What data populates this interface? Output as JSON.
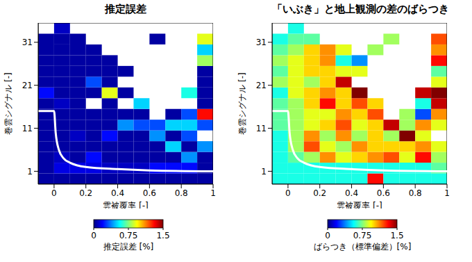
{
  "chart_data": [
    {
      "type": "heatmap",
      "title": "推定誤差",
      "x_label": "雲被覆率 [-]",
      "y_label": "巻雲シグナル [-]",
      "xlim": [
        -0.1,
        1
      ],
      "xticks": [
        0,
        0.2,
        0.4,
        0.6,
        0.8,
        1
      ],
      "ylim": [
        -2,
        35.5
      ],
      "yticks": [
        1,
        11,
        21,
        31
      ],
      "x_bins": [
        -0.1,
        0,
        0.1,
        0.2,
        0.3,
        0.4,
        0.5,
        0.6,
        0.7,
        0.8,
        0.9,
        1
      ],
      "y_bins": [
        -2,
        0.5,
        3,
        5.5,
        8,
        10.5,
        13,
        15.5,
        18,
        20.5,
        23,
        25.5,
        28,
        30.5,
        33,
        35.5
      ],
      "cells": [
        [
          0.05,
          0.05,
          0.05,
          0.05,
          0.05,
          0.05,
          0.05,
          0.05,
          0.05,
          0.05,
          0.05
        ],
        [
          0.05,
          0.15,
          0.15,
          0.15,
          0.1,
          0.1,
          0.1,
          0.2,
          0.2,
          0.2,
          0.05
        ],
        [
          0.05,
          0.1,
          0.05,
          0.2,
          0.05,
          0.05,
          0.05,
          0.05,
          0.05,
          0.4,
          0.05
        ],
        [
          0.05,
          0.05,
          0.05,
          0.05,
          0.05,
          0.05,
          0.05,
          0.05,
          0.5,
          0.05,
          0.4
        ],
        [
          0.05,
          0.05,
          0.1,
          0.05,
          0.2,
          0.05,
          0.05,
          0.4,
          0.05,
          0.3,
          null
        ],
        [
          0.05,
          0.05,
          0.05,
          0.05,
          0.05,
          0.4,
          0.3,
          0.3,
          0.5,
          0.5,
          0.3
        ],
        [
          0.05,
          0.05,
          0.05,
          0.05,
          0.05,
          0.05,
          0.05,
          null,
          0.05,
          0.3,
          1.3
        ],
        [
          0.05,
          0.1,
          0.05,
          null,
          0.05,
          null,
          0.5,
          null,
          null,
          null,
          0.05
        ],
        [
          0.2,
          0.05,
          0.05,
          0.05,
          0.9,
          0.05,
          null,
          null,
          null,
          0.6,
          0.05
        ],
        [
          0.05,
          0.05,
          0.05,
          0.3,
          0.05,
          null,
          null,
          null,
          null,
          null,
          0.05
        ],
        [
          0.05,
          0.05,
          0.05,
          0.05,
          0.05,
          0.05,
          null,
          null,
          null,
          null,
          0.05
        ],
        [
          0.05,
          0.05,
          0.05,
          0.05,
          0.05,
          null,
          null,
          null,
          null,
          null,
          0.8
        ],
        [
          0.05,
          0.05,
          0.05,
          0.05,
          null,
          null,
          null,
          null,
          null,
          null,
          0.5
        ],
        [
          0.05,
          0.05,
          0.05,
          null,
          null,
          null,
          null,
          0.05,
          null,
          null,
          0.9
        ],
        [
          null,
          0.1,
          null,
          null,
          null,
          null,
          null,
          null,
          null,
          null,
          null
        ]
      ],
      "colorbar": {
        "lim": [
          0,
          1.5
        ],
        "ticks": [
          0,
          0.75,
          1.5
        ],
        "label": "推定誤差 [%]"
      },
      "boundary": {
        "color": "#ffffff",
        "line_style": "solid",
        "x": [
          -0.1,
          0,
          0.01,
          0.03,
          0.06,
          0.1,
          0.2,
          0.4,
          0.6,
          1
        ],
        "y": [
          15,
          15,
          10,
          6,
          4,
          3,
          2,
          1.5,
          1.2,
          1
        ]
      }
    },
    {
      "type": "heatmap",
      "title": "「いぶき」と地上観測の差のばらつき",
      "x_label": "雲被覆率 [-]",
      "y_label": "巻雲シグナル [-]",
      "xlim": [
        -0.1,
        1
      ],
      "xticks": [
        0,
        0.2,
        0.4,
        0.6,
        0.8,
        1
      ],
      "ylim": [
        -2,
        35.5
      ],
      "yticks": [
        1,
        11,
        21,
        31
      ],
      "x_bins": [
        -0.1,
        0,
        0.1,
        0.2,
        0.3,
        0.4,
        0.5,
        0.6,
        0.7,
        0.8,
        0.9,
        1
      ],
      "y_bins": [
        -2,
        0.5,
        3,
        5.5,
        8,
        10.5,
        13,
        15.5,
        18,
        20.5,
        23,
        25.5,
        28,
        30.5,
        33,
        35.5
      ],
      "cells": [
        [
          0.6,
          0.6,
          0.6,
          0.6,
          0.6,
          0.6,
          1.3,
          0.6,
          0.6,
          0.6,
          0.6
        ],
        [
          0.6,
          0.6,
          0.6,
          0.6,
          0.6,
          0.6,
          0.6,
          0.6,
          0.6,
          0.6,
          0.7
        ],
        [
          0.6,
          0.7,
          0.8,
          1.1,
          0.9,
          1.0,
          1.1,
          1.2,
          0.9,
          1.3,
          0.8
        ],
        [
          0.6,
          0.8,
          1.2,
          0.9,
          0.8,
          1.1,
          1.0,
          1.0,
          1.0,
          1.1,
          0.9
        ],
        [
          0.6,
          0.8,
          1.1,
          0.8,
          1.1,
          0.8,
          1.0,
          0.8,
          1.5,
          0.9,
          null
        ],
        [
          0.7,
          0.8,
          0.9,
          1.0,
          1.2,
          0.9,
          1.0,
          1.4,
          0.8,
          1.1,
          0.9
        ],
        [
          0.7,
          0.8,
          0.9,
          0.9,
          1.1,
          1.0,
          1.2,
          null,
          0.8,
          0.3,
          1.1
        ],
        [
          0.7,
          0.8,
          1.0,
          1.3,
          1.0,
          1.2,
          1.0,
          null,
          null,
          0.6,
          1.4
        ],
        [
          0.6,
          0.9,
          1.0,
          1.1,
          1.0,
          1.5,
          null,
          null,
          null,
          1.4,
          1.5
        ],
        [
          0.8,
          0.9,
          0.8,
          1.0,
          1.4,
          null,
          null,
          null,
          null,
          null,
          0.9
        ],
        [
          0.7,
          0.9,
          1.0,
          1.0,
          0.9,
          0.9,
          null,
          null,
          null,
          null,
          0.7
        ],
        [
          0.8,
          0.9,
          1.0,
          1.1,
          0.6,
          0.4,
          null,
          null,
          null,
          null,
          1.3
        ],
        [
          0.7,
          0.8,
          1.0,
          1.1,
          0.9,
          null,
          0.8,
          null,
          null,
          null,
          1.1
        ],
        [
          0.6,
          0.7,
          0.7,
          null,
          null,
          null,
          null,
          0.8,
          null,
          null,
          1.2
        ],
        [
          null,
          0.6,
          null,
          null,
          null,
          null,
          null,
          null,
          null,
          null,
          null
        ]
      ],
      "colorbar": {
        "lim": [
          0,
          1.5
        ],
        "ticks": [
          0,
          0.75,
          1.5
        ],
        "label": "ばらつき（標準偏差）[%]"
      },
      "boundary": {
        "color": "#ffffff",
        "line_style": "solid",
        "x": [
          -0.1,
          0,
          0.01,
          0.03,
          0.06,
          0.1,
          0.2,
          0.4,
          0.6,
          1
        ],
        "y": [
          15,
          15,
          10,
          6,
          4,
          3,
          2,
          1.5,
          1.2,
          1
        ]
      }
    }
  ]
}
